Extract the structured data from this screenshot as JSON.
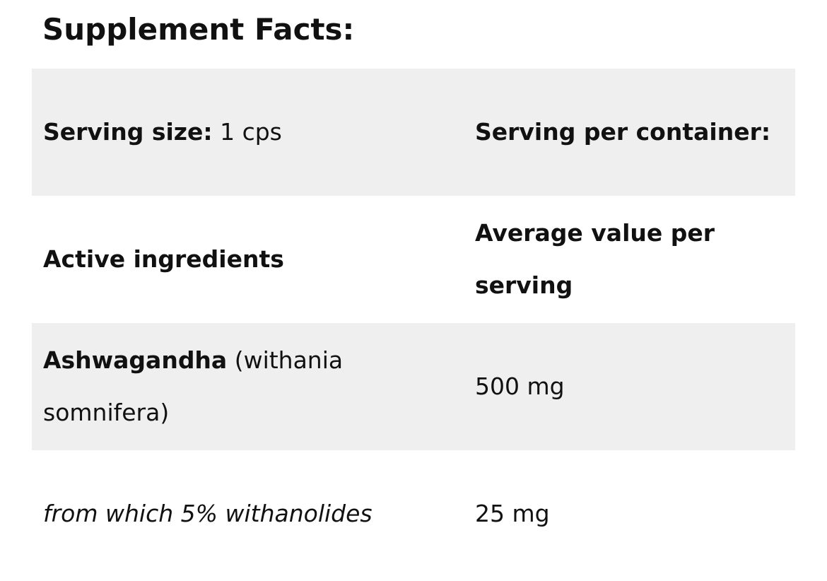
{
  "title": "Supplement Facts:",
  "table": {
    "rows": [
      [
        {
          "label": "Serving size:",
          "value": "1 cps"
        },
        {
          "label": "Serving per container:"
        }
      ],
      [
        {
          "label": "Active ingredients"
        },
        {
          "label": "Average value per serving"
        }
      ],
      [
        {
          "label": "Ashwagandha",
          "value": "(withania somnifera)"
        },
        {
          "value": "500 mg"
        }
      ],
      [
        {
          "value": "from which 5% withanolides"
        },
        {
          "value": "25 mg"
        }
      ]
    ]
  }
}
